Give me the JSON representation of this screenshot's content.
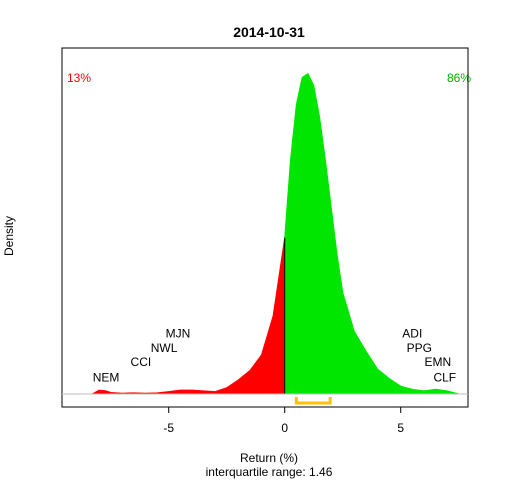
{
  "chart_data": {
    "type": "area",
    "title": "2014-10-31",
    "xlabel": "Return (%)",
    "ylabel": "Density",
    "footnote": "interquartile range: 1.46",
    "xlim": [
      -9.6,
      7.9
    ],
    "ylim": [
      0,
      0.43
    ],
    "x_ticks": [
      -5,
      0,
      5
    ],
    "grid": false,
    "colors": {
      "negative": "#ff0000",
      "positive": "#00e600",
      "iqr_marker": "#ffc000",
      "baseline": "#bebebe",
      "axis": "#000000"
    },
    "negative_pct_label": "13%",
    "positive_pct_label": "86%",
    "iqr": [
      0.5,
      1.96
    ],
    "density": {
      "x": [
        -8.3,
        -8.0,
        -7.7,
        -7.5,
        -7.0,
        -6.5,
        -6.0,
        -5.5,
        -5.0,
        -4.5,
        -4.0,
        -3.5,
        -3.0,
        -2.5,
        -2.0,
        -1.5,
        -1.0,
        -0.5,
        0.0,
        0.25,
        0.5,
        0.75,
        1.0,
        1.25,
        1.5,
        1.75,
        2.0,
        2.25,
        2.5,
        3.0,
        3.5,
        4.0,
        4.5,
        5.0,
        5.5,
        6.0,
        6.5,
        7.0,
        7.5
      ],
      "y": [
        0.0,
        0.005,
        0.004,
        0.002,
        0.001,
        0.0015,
        0.001,
        0.0015,
        0.003,
        0.005,
        0.005,
        0.004,
        0.003,
        0.008,
        0.018,
        0.03,
        0.05,
        0.1,
        0.2,
        0.3,
        0.37,
        0.405,
        0.41,
        0.395,
        0.355,
        0.3,
        0.24,
        0.18,
        0.13,
        0.08,
        0.055,
        0.032,
        0.02,
        0.01,
        0.006,
        0.004,
        0.006,
        0.004,
        0.0
      ]
    },
    "annotations": [
      {
        "label": "NEM",
        "x": -7.7,
        "y": 0.016
      },
      {
        "label": "CCI",
        "x": -6.2,
        "y": 0.036
      },
      {
        "label": "NWL",
        "x": -5.2,
        "y": 0.054
      },
      {
        "label": "MJN",
        "x": -4.6,
        "y": 0.072
      },
      {
        "label": "ADI",
        "x": 5.5,
        "y": 0.072
      },
      {
        "label": "PPG",
        "x": 5.8,
        "y": 0.054
      },
      {
        "label": "EMN",
        "x": 6.6,
        "y": 0.036
      },
      {
        "label": "CLF",
        "x": 6.9,
        "y": 0.016
      }
    ]
  }
}
